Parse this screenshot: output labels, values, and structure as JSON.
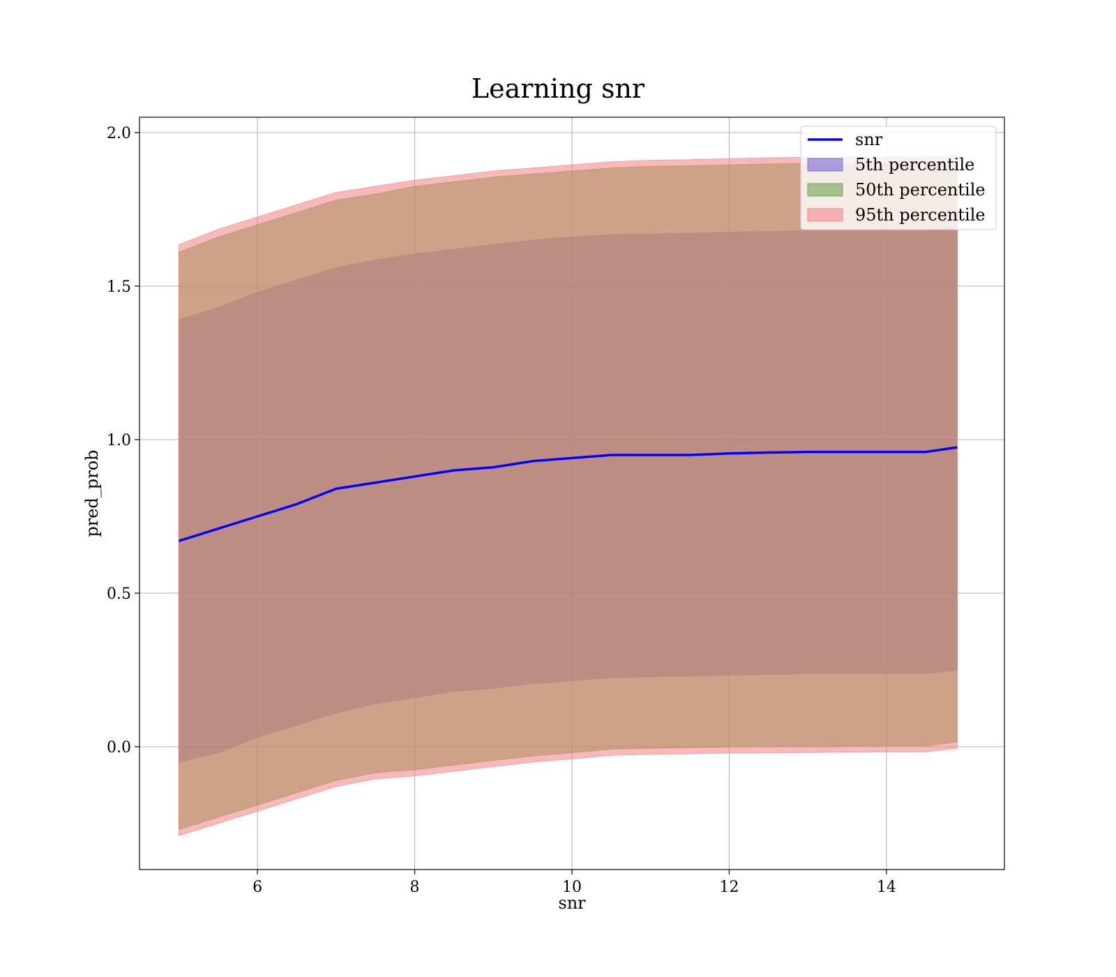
{
  "colors": {
    "line": "#0000ff",
    "band_5th": "#6a5acd",
    "band_50th": "#5c9e3f",
    "band_95th": "#f08080",
    "grid": "#b0b0b0"
  },
  "chart_data": {
    "type": "area",
    "title": "Learning snr",
    "xlabel": "snr",
    "ylabel": "pred_prob",
    "xlim": [
      4.5,
      15.5
    ],
    "ylim": [
      -0.4,
      2.05
    ],
    "xticks": [
      6,
      8,
      10,
      12,
      14
    ],
    "yticks": [
      0.0,
      0.5,
      1.0,
      1.5,
      2.0
    ],
    "xtick_labels": [
      "6",
      "8",
      "10",
      "12",
      "14"
    ],
    "ytick_labels": [
      "0.0",
      "0.5",
      "1.0",
      "1.5",
      "2.0"
    ],
    "grid": true,
    "legend_position": "top-right",
    "legend": [
      "snr",
      "5th percentile",
      "50th percentile",
      "95th percentile"
    ],
    "x": [
      5.0,
      5.5,
      6.0,
      6.5,
      7.0,
      7.5,
      8.0,
      8.5,
      9.0,
      9.5,
      10.0,
      10.5,
      11.0,
      11.5,
      12.0,
      12.5,
      13.0,
      13.5,
      14.0,
      14.5,
      14.9
    ],
    "series": [
      {
        "name": "snr",
        "kind": "line",
        "values": [
          0.67,
          0.71,
          0.75,
          0.79,
          0.84,
          0.86,
          0.88,
          0.9,
          0.91,
          0.93,
          0.94,
          0.95,
          0.95,
          0.95,
          0.955,
          0.958,
          0.96,
          0.96,
          0.96,
          0.96,
          0.975
        ]
      },
      {
        "name": "5th percentile",
        "kind": "band",
        "lower": [
          -0.05,
          -0.02,
          0.03,
          0.07,
          0.11,
          0.14,
          0.16,
          0.18,
          0.19,
          0.205,
          0.215,
          0.225,
          0.228,
          0.23,
          0.233,
          0.236,
          0.238,
          0.238,
          0.238,
          0.238,
          0.25
        ],
        "upper": [
          1.39,
          1.43,
          1.48,
          1.52,
          1.56,
          1.585,
          1.605,
          1.62,
          1.635,
          1.65,
          1.66,
          1.668,
          1.67,
          1.672,
          1.676,
          1.678,
          1.68,
          1.68,
          1.68,
          1.68,
          1.69
        ]
      },
      {
        "name": "50th percentile",
        "kind": "band",
        "lower": [
          -0.27,
          -0.23,
          -0.19,
          -0.15,
          -0.11,
          -0.085,
          -0.075,
          -0.06,
          -0.045,
          -0.03,
          -0.02,
          -0.008,
          -0.005,
          -0.003,
          -0.001,
          0.0,
          0.001,
          0.002,
          0.003,
          0.003,
          0.015
        ],
        "upper": [
          1.61,
          1.66,
          1.7,
          1.74,
          1.78,
          1.8,
          1.825,
          1.84,
          1.855,
          1.865,
          1.875,
          1.885,
          1.89,
          1.892,
          1.895,
          1.898,
          1.9,
          1.9,
          1.9,
          1.9,
          1.905
        ]
      },
      {
        "name": "95th percentile",
        "kind": "band",
        "lower": [
          -0.29,
          -0.25,
          -0.21,
          -0.17,
          -0.13,
          -0.105,
          -0.095,
          -0.08,
          -0.065,
          -0.05,
          -0.04,
          -0.028,
          -0.025,
          -0.023,
          -0.021,
          -0.02,
          -0.019,
          -0.018,
          -0.017,
          -0.017,
          -0.005
        ],
        "upper": [
          1.635,
          1.685,
          1.725,
          1.765,
          1.805,
          1.825,
          1.845,
          1.86,
          1.875,
          1.885,
          1.895,
          1.905,
          1.91,
          1.912,
          1.915,
          1.918,
          1.92,
          1.92,
          1.92,
          1.92,
          1.925
        ]
      }
    ]
  }
}
